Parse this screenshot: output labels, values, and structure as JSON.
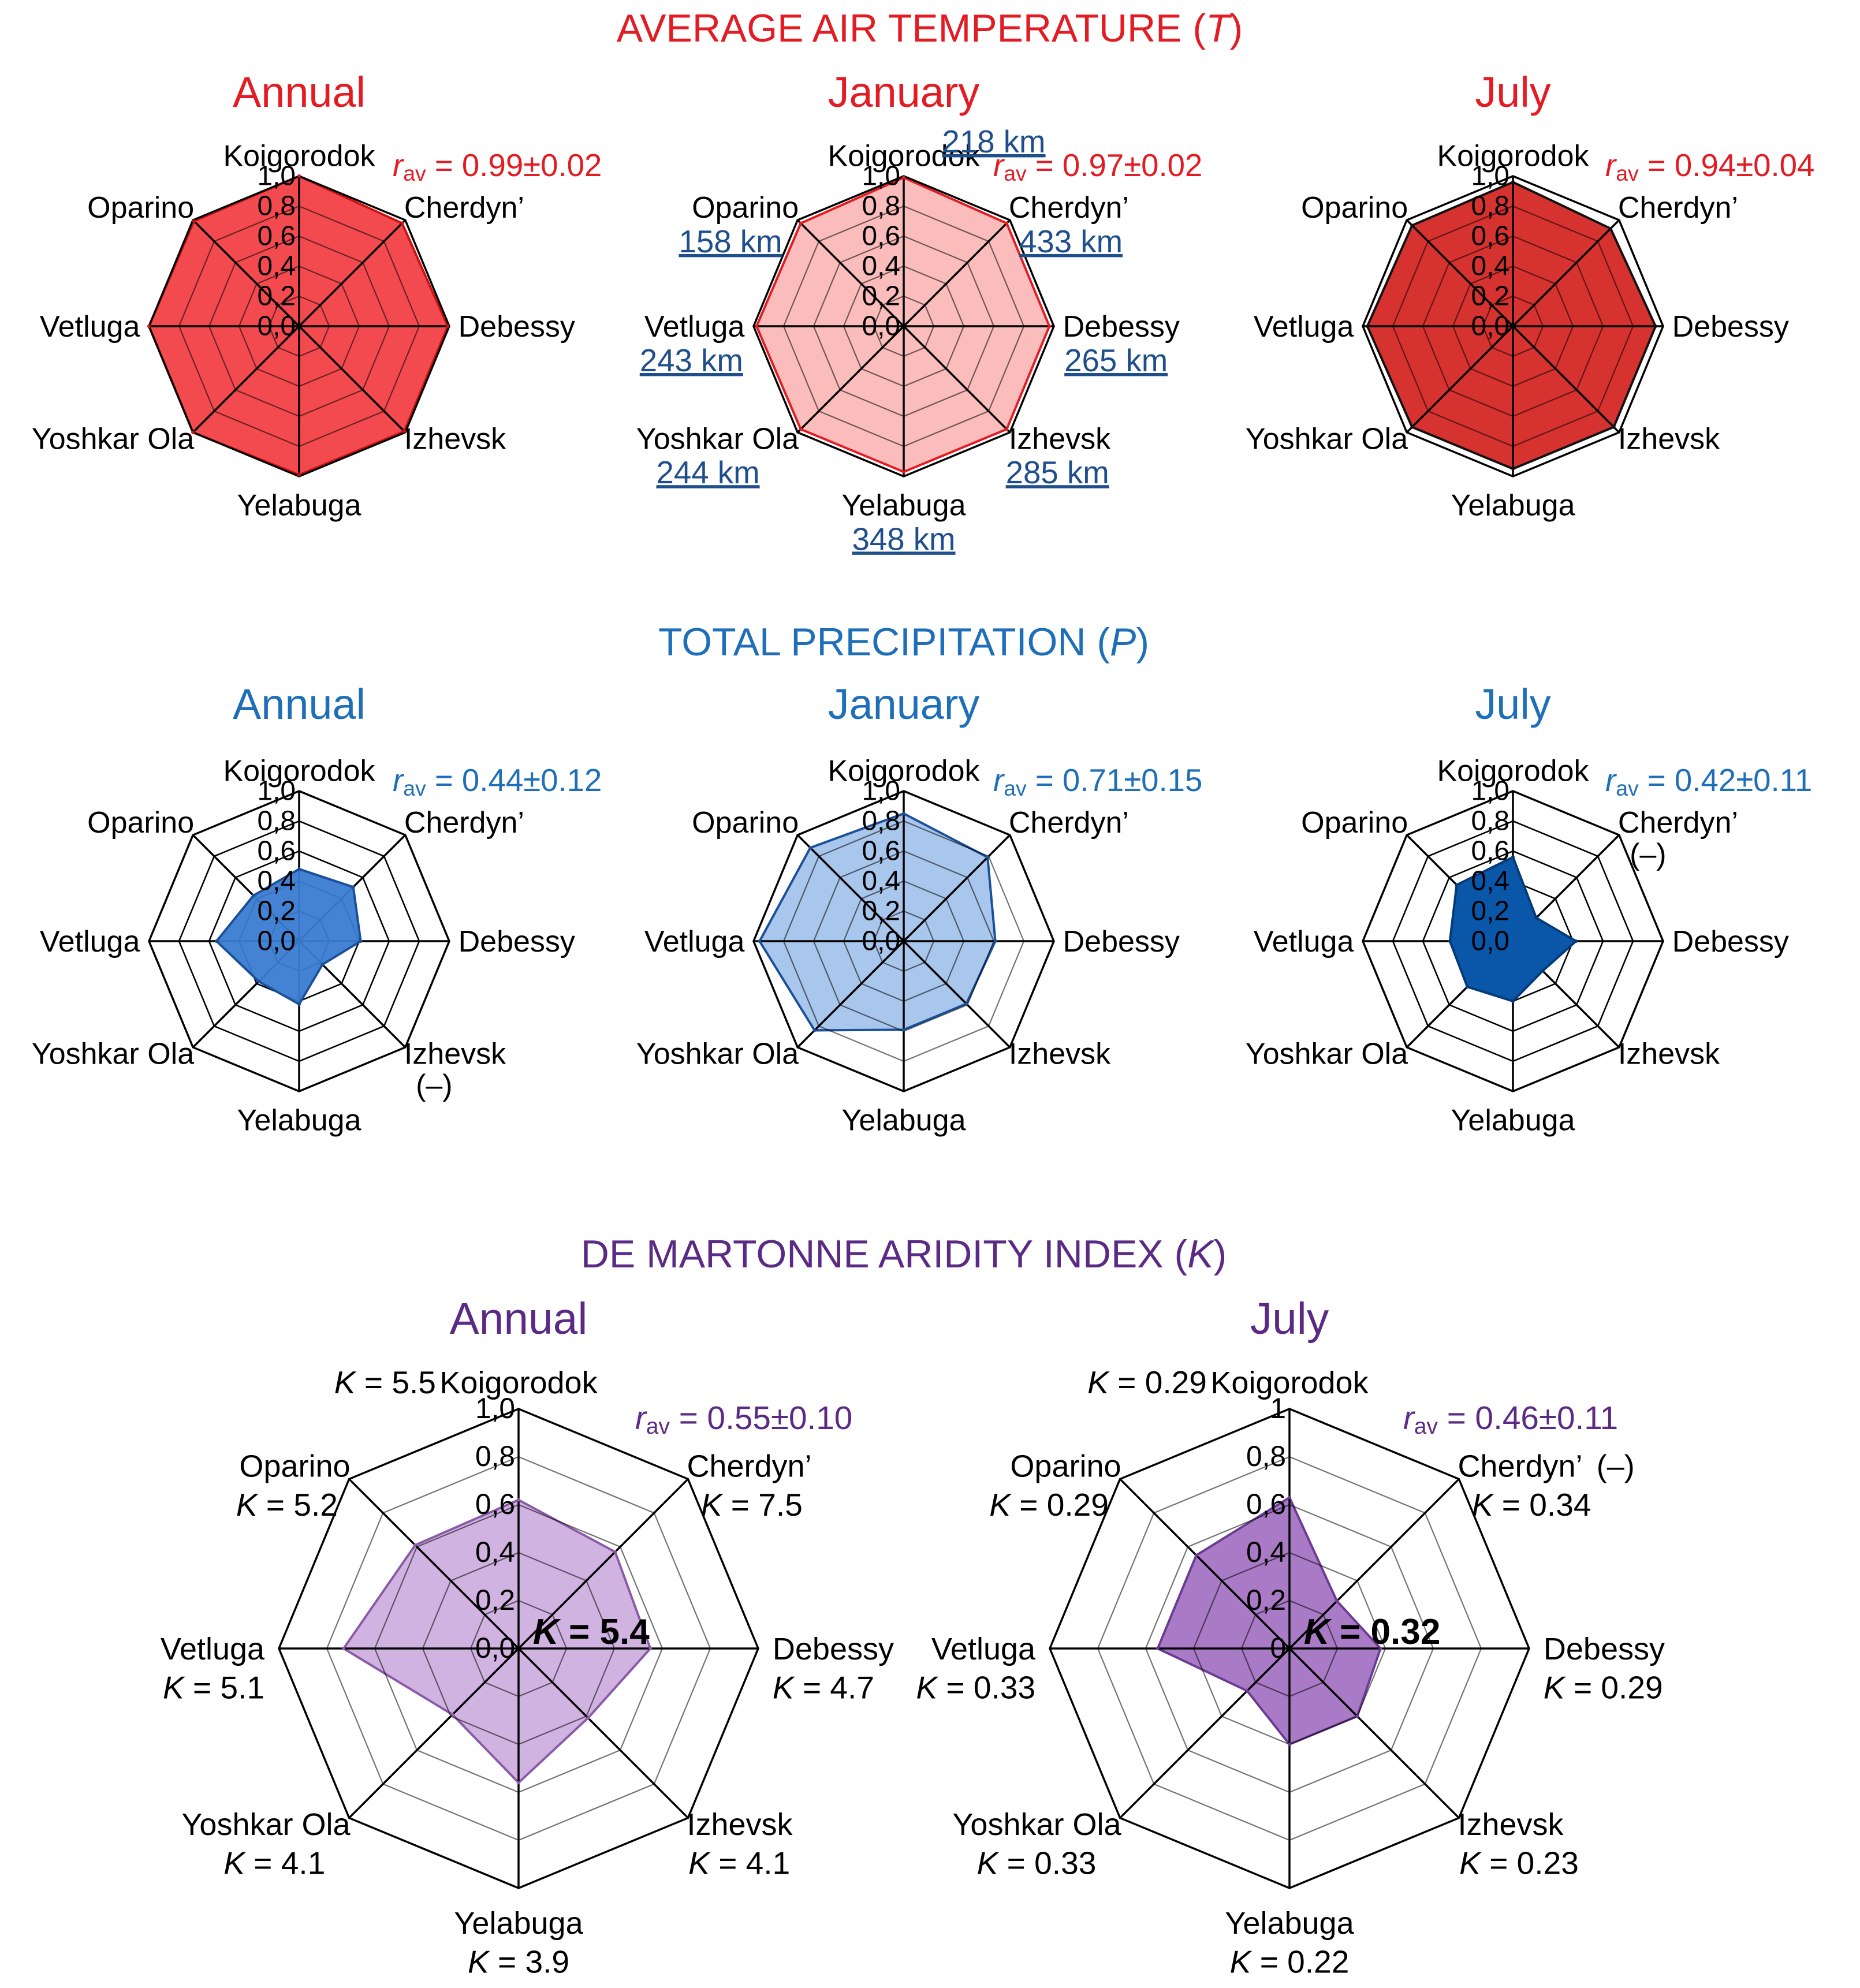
{
  "colors": {
    "temp": "#e31b23",
    "prec": "#1f6fb8",
    "prec_dark": "#0a4f9a",
    "arid": "#5a2a84",
    "dist": "#1f4e8c",
    "axis": "#000000",
    "grid_inner": "#555555"
  },
  "sections": {
    "temperature": {
      "title_prefix": "AVERAGE AIR TEMPERATURE (",
      "var": "T",
      "title_suffix": ")"
    },
    "precipitation": {
      "title_prefix": "TOTAL PRECIPITATION (",
      "var": "P",
      "title_suffix": ")"
    },
    "aridity": {
      "title_prefix": "DE MARTONNE ARIDITY INDEX (",
      "var": "K",
      "title_suffix": ")"
    }
  },
  "chart_data": [
    {
      "id": "t-annual",
      "type": "radar",
      "section": "temperature",
      "title": "Annual",
      "categories": [
        "Koigorodok",
        "Cherdyn’",
        "Debessy",
        "Izhevsk",
        "Yelabuga",
        "Yoshkar Ola",
        "Vetluga",
        "Oparino"
      ],
      "values": [
        1.0,
        0.97,
        0.99,
        0.99,
        0.99,
        1.0,
        1.0,
        0.99
      ],
      "ticks": [
        "0,0",
        "0,2",
        "0,4",
        "0,6",
        "0,8",
        "1,0"
      ],
      "r_sym": "r",
      "r_sub": "av",
      "r_value": " = 0.99±0.02",
      "fill": "#f24a4f",
      "fill_opacity": 1,
      "stroke": "#cc1111",
      "grid": "over"
    },
    {
      "id": "t-january",
      "type": "radar",
      "section": "temperature",
      "title": "January",
      "categories": [
        "Koigorodok",
        "Cherdyn’",
        "Debessy",
        "Izhevsk",
        "Yelabuga",
        "Yoshkar Ola",
        "Vetluga",
        "Oparino"
      ],
      "values": [
        0.99,
        0.97,
        0.97,
        0.97,
        0.97,
        0.97,
        0.98,
        0.97
      ],
      "ticks": [
        "0,0",
        "0,2",
        "0,4",
        "0,6",
        "0,8",
        "1,0"
      ],
      "r_sym": "r",
      "r_sub": "av",
      "r_value": " = 0.97±0.02",
      "distances": [
        "218 km",
        "433 km",
        "265 km",
        "285 km",
        "348 km",
        "244 km",
        "243 km",
        "158 km"
      ],
      "fill": "#fbbcbc",
      "fill_opacity": 1,
      "stroke": "#e31b23",
      "grid": "over"
    },
    {
      "id": "t-july",
      "type": "radar",
      "section": "temperature",
      "title": "July",
      "categories": [
        "Koigorodok",
        "Cherdyn’",
        "Debessy",
        "Izhevsk",
        "Yelabuga",
        "Yoshkar Ola",
        "Vetluga",
        "Oparino"
      ],
      "values": [
        0.96,
        0.92,
        0.95,
        0.95,
        0.95,
        0.95,
        0.97,
        0.95
      ],
      "ticks": [
        "0,0",
        "0,2",
        "0,4",
        "0,6",
        "0,8",
        "1,0"
      ],
      "r_sym": "r",
      "r_sub": "av",
      "r_value": " = 0.94±0.04",
      "fill": "#d6322f",
      "fill_opacity": 1,
      "stroke": "#111111",
      "grid": "over"
    },
    {
      "id": "p-annual",
      "type": "radar",
      "section": "precipitation",
      "title": "Annual",
      "categories": [
        "Koigorodok",
        "Cherdyn’",
        "Debessy",
        "Izhevsk",
        "Yelabuga",
        "Yoshkar Ola",
        "Vetluga",
        "Oparino"
      ],
      "values": [
        0.48,
        0.51,
        0.41,
        0.22,
        0.42,
        0.38,
        0.55,
        0.43
      ],
      "ticks": [
        "0,0",
        "0,2",
        "0,4",
        "0,6",
        "0,8",
        "1,0"
      ],
      "r_sym": "r",
      "r_sub": "av",
      "r_value": " = 0.44±0.12",
      "notes": {
        "Izhevsk": "(–)"
      },
      "fill": "#3a7bd1",
      "fill_opacity": 0.95,
      "stroke": "#1a4f9a",
      "grid": "under"
    },
    {
      "id": "p-january",
      "type": "radar",
      "section": "precipitation",
      "title": "January",
      "categories": [
        "Koigorodok",
        "Cherdyn’",
        "Debessy",
        "Izhevsk",
        "Yelabuga",
        "Yoshkar Ola",
        "Vetluga",
        "Oparino"
      ],
      "values": [
        0.85,
        0.79,
        0.61,
        0.59,
        0.59,
        0.84,
        0.96,
        0.88
      ],
      "ticks": [
        "0,0",
        "0,2",
        "0,4",
        "0,6",
        "0,8",
        "1,0"
      ],
      "r_sym": "r",
      "r_sub": "av",
      "r_value": " = 0.71±0.15",
      "fill": "#a9c6ec",
      "fill_opacity": 1,
      "stroke": "#1a4f9a",
      "grid": "over"
    },
    {
      "id": "p-july",
      "type": "radar",
      "section": "precipitation",
      "title": "July",
      "categories": [
        "Koigorodok",
        "Cherdyn’",
        "Debessy",
        "Izhevsk",
        "Yelabuga",
        "Yoshkar Ola",
        "Vetluga",
        "Oparino"
      ],
      "values": [
        0.56,
        0.22,
        0.42,
        0.28,
        0.4,
        0.43,
        0.42,
        0.53
      ],
      "ticks": [
        "0,0",
        "0,2",
        "0,4",
        "0,6",
        "0,8",
        "1,0"
      ],
      "r_sym": "r",
      "r_sub": "av",
      "r_value": " = 0.42±0.11",
      "notes": {
        "Cherdyn’": "(–)"
      },
      "fill": "#0a56a8",
      "fill_opacity": 1,
      "stroke": "#053a78",
      "grid": "under"
    },
    {
      "id": "k-annual",
      "type": "radar",
      "section": "aridity",
      "title": "Annual",
      "categories": [
        "Koigorodok",
        "Cherdyn’",
        "Debessy",
        "Izhevsk",
        "Yelabuga",
        "Yoshkar Ola",
        "Vetluga",
        "Oparino"
      ],
      "values": [
        0.62,
        0.57,
        0.55,
        0.41,
        0.56,
        0.39,
        0.73,
        0.61
      ],
      "ticks": [
        "0,0",
        "0,2",
        "0,4",
        "0,6",
        "0,8",
        "1,0"
      ],
      "r_sym": "r",
      "r_sub": "av",
      "r_value": " = 0.55±0.10",
      "k_values": [
        "5.5",
        "7.5",
        "4.7",
        "4.1",
        "3.9",
        "4.1",
        "5.1",
        "5.2"
      ],
      "center_k": "5.4",
      "fill": "#c9a6dc",
      "fill_opacity": 0.85,
      "stroke": "#8a5aa8",
      "grid": "over"
    },
    {
      "id": "k-july",
      "type": "radar",
      "section": "aridity",
      "title": "July",
      "categories": [
        "Koigorodok",
        "Cherdyn’",
        "Debessy",
        "Izhevsk",
        "Yelabuga",
        "Yoshkar Ola",
        "Vetluga",
        "Oparino"
      ],
      "values": [
        0.63,
        0.28,
        0.38,
        0.4,
        0.4,
        0.25,
        0.55,
        0.55
      ],
      "ticks": [
        "0",
        "0,2",
        "0,4",
        "0,6",
        "0,8",
        "1"
      ],
      "r_sym": "r",
      "r_sub": "av",
      "r_value": " = 0.46±0.11",
      "k_values": [
        "0.29",
        "0.34",
        "0.29",
        "0.23",
        "0.22",
        "0.33",
        "0.33",
        "0.29"
      ],
      "center_k": "0.32",
      "notes": {
        "Cherdyn’": "(–)"
      },
      "fill": "#a06cc0",
      "fill_opacity": 0.9,
      "stroke": "#6b3a92",
      "grid": "over"
    }
  ]
}
